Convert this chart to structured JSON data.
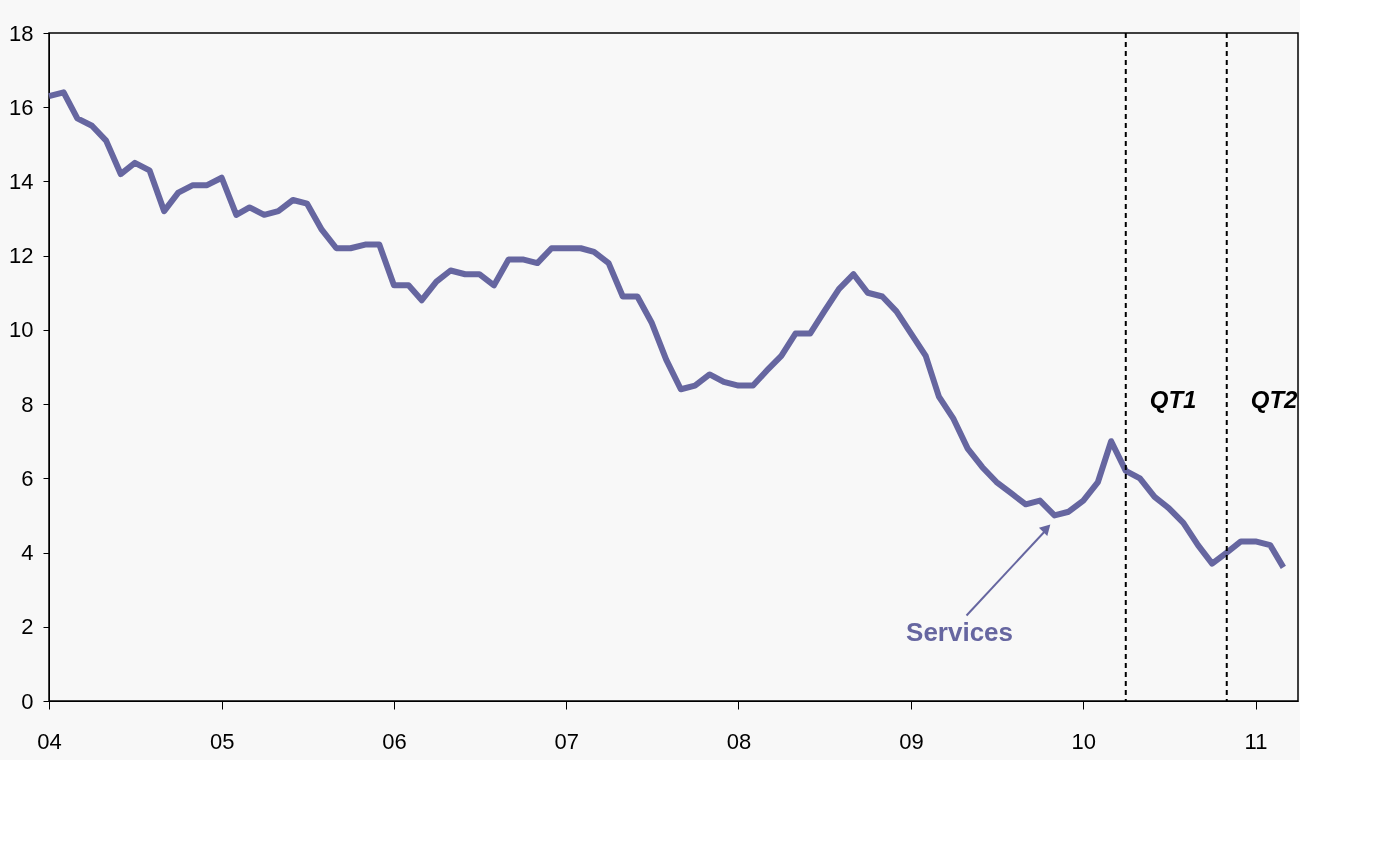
{
  "chart_data": {
    "type": "line",
    "x": [
      "2004-01",
      "2004-02",
      "2004-03",
      "2004-04",
      "2004-05",
      "2004-06",
      "2004-07",
      "2004-08",
      "2004-09",
      "2004-10",
      "2004-11",
      "2004-12",
      "2005-01",
      "2005-02",
      "2005-03",
      "2005-04",
      "2005-05",
      "2005-06",
      "2005-07",
      "2005-08",
      "2005-09",
      "2005-10",
      "2005-11",
      "2005-12",
      "2006-01",
      "2006-02",
      "2006-03",
      "2006-04",
      "2006-05",
      "2006-06",
      "2006-07",
      "2006-08",
      "2006-09",
      "2006-10",
      "2006-11",
      "2006-12",
      "2007-01",
      "2007-02",
      "2007-03",
      "2007-04",
      "2007-05",
      "2007-06",
      "2007-07",
      "2007-08",
      "2007-09",
      "2007-10",
      "2007-11",
      "2007-12",
      "2008-01",
      "2008-02",
      "2008-03",
      "2008-04",
      "2008-05",
      "2008-06",
      "2008-07",
      "2008-08",
      "2008-09",
      "2008-10",
      "2008-11",
      "2008-12",
      "2009-01",
      "2009-02",
      "2009-03",
      "2009-04",
      "2009-05",
      "2009-06",
      "2009-07",
      "2009-08",
      "2009-09",
      "2009-10",
      "2009-11",
      "2009-12",
      "2010-01",
      "2010-02",
      "2010-03",
      "2010-04",
      "2010-05",
      "2010-06",
      "2010-07",
      "2010-08",
      "2010-09",
      "2010-10",
      "2010-11",
      "2010-12",
      "2011-01",
      "2011-02",
      "2011-03"
    ],
    "series": [
      {
        "name": "Services",
        "color": "#6666a0",
        "values": [
          16.3,
          16.4,
          15.7,
          15.5,
          15.1,
          14.2,
          14.5,
          14.3,
          13.2,
          13.7,
          13.9,
          13.9,
          14.1,
          13.1,
          13.3,
          13.1,
          13.2,
          13.5,
          13.4,
          12.7,
          12.2,
          12.2,
          12.3,
          12.3,
          11.2,
          11.2,
          10.8,
          11.3,
          11.6,
          11.5,
          11.5,
          11.2,
          11.9,
          11.9,
          11.8,
          12.2,
          12.2,
          12.2,
          12.1,
          11.8,
          10.9,
          10.9,
          10.2,
          9.2,
          8.4,
          8.5,
          8.8,
          8.6,
          8.5,
          8.5,
          8.9,
          9.3,
          9.9,
          9.9,
          10.5,
          11.1,
          11.5,
          11.0,
          10.9,
          10.5,
          9.9,
          9.3,
          8.2,
          7.6,
          6.8,
          6.3,
          5.9,
          5.6,
          5.3,
          5.4,
          5.0,
          5.1,
          5.4,
          5.9,
          7.0,
          6.2,
          6.0,
          5.5,
          5.2,
          4.8,
          4.2,
          3.7,
          4.0,
          4.3,
          4.3,
          4.2,
          3.6
        ]
      }
    ],
    "xlim": [
      "2004-01",
      "2011-04"
    ],
    "xticks": [
      {
        "value": "2004",
        "label": "04"
      },
      {
        "value": "2005",
        "label": "05"
      },
      {
        "value": "2006",
        "label": "06"
      },
      {
        "value": "2007",
        "label": "07"
      },
      {
        "value": "2008",
        "label": "08"
      },
      {
        "value": "2009",
        "label": "09"
      },
      {
        "value": "2010",
        "label": "10"
      },
      {
        "value": "2011",
        "label": "11"
      }
    ],
    "ylim": [
      0,
      18
    ],
    "yticks": [
      0,
      2,
      4,
      6,
      8,
      10,
      12,
      14,
      16,
      18
    ],
    "ref_lines": [
      {
        "axis": "x",
        "value": "2010-04",
        "label": "QT1",
        "color": "#000000",
        "line_style": "dashed"
      },
      {
        "axis": "x",
        "value": "2010-11",
        "label": "QT2",
        "color": "#000000",
        "line_style": "dashed"
      }
    ],
    "grid": false,
    "legend": false,
    "marker": "none",
    "line_style": "solid"
  }
}
